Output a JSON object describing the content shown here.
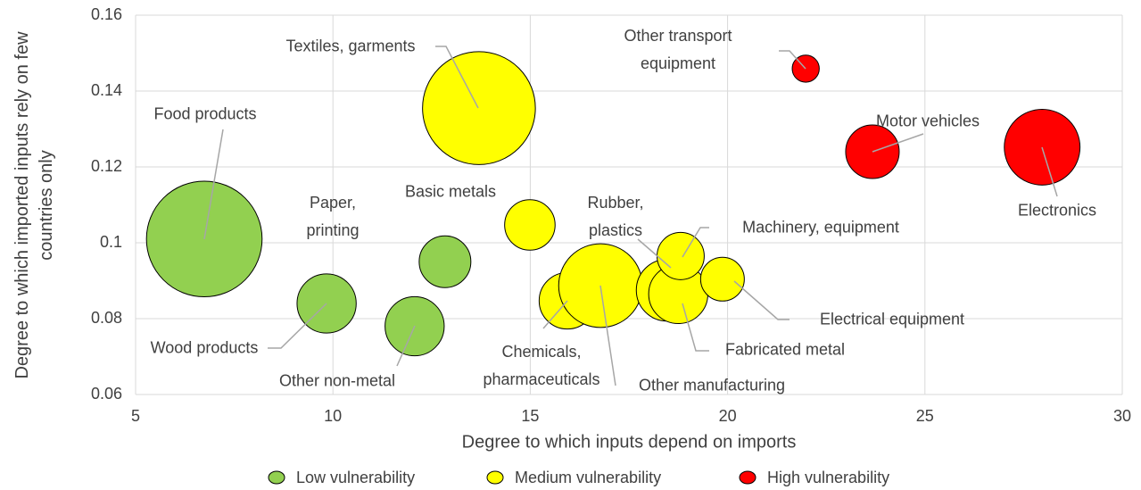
{
  "chart_data": {
    "type": "bubble",
    "x_label": "Degree to which inputs depend on imports",
    "y_label": "Degree to which imported inputs rely on few countries only",
    "xlim": [
      5,
      30
    ],
    "xticks": [
      5,
      10,
      15,
      20,
      25,
      30
    ],
    "ylim": [
      0.06,
      0.16
    ],
    "yticks": [
      0.06,
      0.08,
      0.1,
      0.12,
      0.14,
      0.16
    ],
    "grid": true,
    "legend": "bottom",
    "series": [
      {
        "name": "Low vulnerability",
        "color": "#92d050",
        "labels": [
          "Food products",
          "Wood products",
          "Other non-metal",
          "Paper, printing"
        ],
        "x": [
          6.74,
          9.84,
          12.07,
          12.84
        ],
        "y": [
          0.101,
          0.084,
          0.078,
          0.095
        ],
        "size": [
          42,
          11,
          11,
          8.4
        ]
      },
      {
        "name": "Medium vulnerability",
        "color": "#ffff00",
        "labels": [
          "Textiles, garments",
          "Basic metals",
          "Chemicals, pharmaceuticals",
          "Other manufacturing",
          "Rubber, plastics",
          "Fabricated metal",
          "Machinery, equipment",
          "Electrical equipment"
        ],
        "x": [
          13.7,
          14.99,
          15.94,
          16.78,
          18.47,
          18.75,
          18.81,
          19.87
        ],
        "y": [
          0.1355,
          0.1047,
          0.0847,
          0.0887,
          0.0875,
          0.0865,
          0.0965,
          0.0904
        ],
        "size": [
          40,
          8,
          10,
          22,
          12,
          11,
          7,
          6
        ]
      },
      {
        "name": "High vulnerability",
        "color": "#ff0000",
        "labels": [
          "Other transport equipment",
          "Motor vehicles",
          "Electronics"
        ],
        "x": [
          21.98,
          23.67,
          27.97
        ],
        "y": [
          0.1459,
          0.124,
          0.1252
        ],
        "size": [
          2.3,
          9,
          18
        ]
      }
    ]
  }
}
